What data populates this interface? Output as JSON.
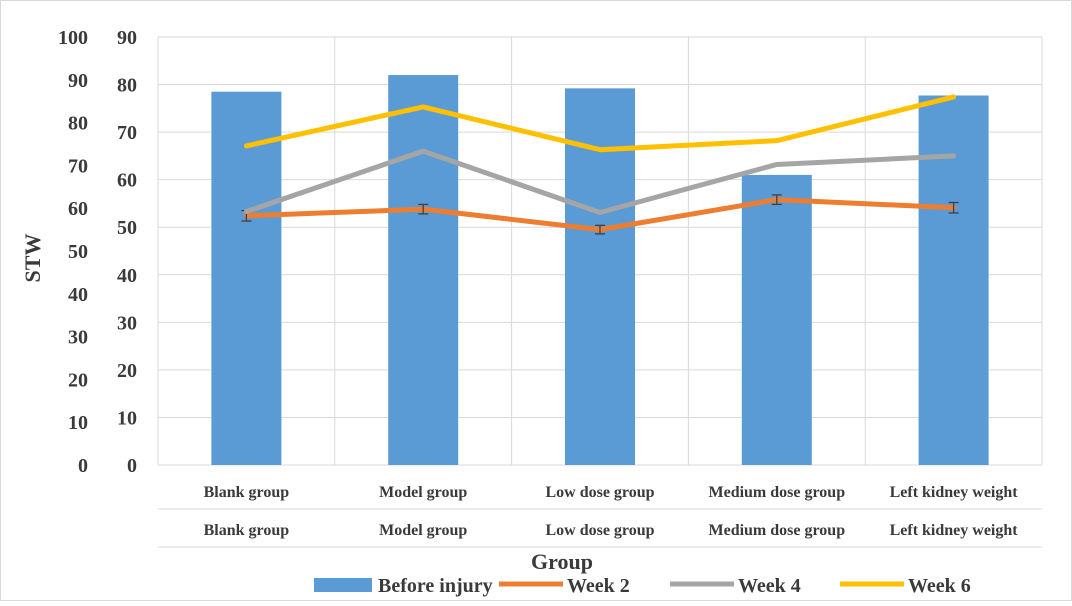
{
  "chart_data": {
    "type": "bar",
    "title": "",
    "xlabel": "Group",
    "ylabel": "STW",
    "categories": [
      "Blank group",
      "Model group",
      "Low dose group",
      "Medium dose group",
      "Left kidney weight"
    ],
    "category_rows": [
      [
        "Blank group",
        "Model group",
        "Low dose group",
        "Medium dose group",
        "Left kidney weight"
      ],
      [
        "Blank group",
        "Model group",
        "Low dose group",
        "Medium dose group",
        "Left kidney weight"
      ]
    ],
    "y_left": {
      "ylim": [
        0,
        100
      ],
      "ticks": [
        "0",
        "10",
        "20",
        "30",
        "40",
        "50",
        "60",
        "70",
        "80",
        "90",
        "100"
      ]
    },
    "y_right": {
      "ylim": [
        0,
        90
      ],
      "ticks": [
        "0",
        "10",
        "20",
        "30",
        "40",
        "50",
        "60",
        "70",
        "80",
        "90"
      ]
    },
    "grid": true,
    "legend_position": "bottom",
    "series": [
      {
        "name": "Before injury",
        "type": "bar",
        "axis": "right",
        "color": "#5B9BD5",
        "values": [
          78.5,
          82,
          79.2,
          61,
          77.7
        ]
      },
      {
        "name": "Week 2",
        "type": "line",
        "axis": "right",
        "color": "#ED7D31",
        "values": [
          52.4,
          53.8,
          49.5,
          55.8,
          54.1
        ],
        "error": [
          1.1,
          1.0,
          0.9,
          1.0,
          1.1
        ]
      },
      {
        "name": "Week 4",
        "type": "line",
        "axis": "right",
        "color": "#A5A5A5",
        "values": [
          53.3,
          66,
          53.1,
          63.2,
          65
        ]
      },
      {
        "name": "Week 6",
        "type": "line",
        "axis": "right",
        "color": "#FFC000",
        "values": [
          67.1,
          75.3,
          66.3,
          68.2,
          77.4
        ]
      }
    ]
  }
}
